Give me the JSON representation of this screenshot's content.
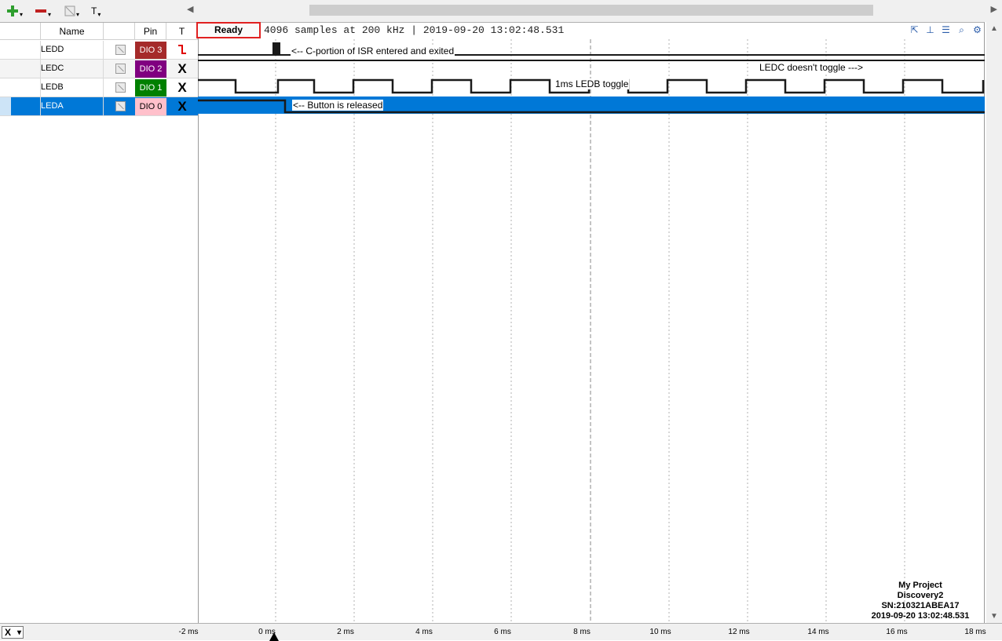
{
  "toolbar": {
    "add_icon": "plus-icon",
    "remove_icon": "minus-icon",
    "visibility_icon": "visibility-icon",
    "text_label": "T"
  },
  "columns": {
    "name": "Name",
    "pin": "Pin",
    "trigger": "T"
  },
  "channels": [
    {
      "name": "LEDD",
      "pin": "DIO 3",
      "pin_color": "#a52a2a",
      "trigger": "falling-edge-icon",
      "selected": false
    },
    {
      "name": "LEDC",
      "pin": "DIO 2",
      "pin_color": "#800080",
      "trigger": "X",
      "selected": false
    },
    {
      "name": "LEDB",
      "pin": "DIO 1",
      "pin_color": "#008000",
      "trigger": "X",
      "selected": false
    },
    {
      "name": "LEDA",
      "pin": "DIO 0",
      "pin_color": "#ffc0cb",
      "trigger": "X",
      "selected": true
    }
  ],
  "status": {
    "ready_label": "Ready",
    "info": "4096 samples at 200 kHz | 2019-09-20 13:02:48.531"
  },
  "annotations": {
    "ledd": "<-- C-portion of ISR entered and exited",
    "ledc": "LEDC doesn't toggle --->",
    "ledb": "1ms LEDB toggle",
    "leda": "<-- Button is released"
  },
  "axis": {
    "x_selector": "X",
    "ticks": [
      "-2 ms",
      "0 ms",
      "2 ms",
      "4 ms",
      "6 ms",
      "8 ms",
      "10 ms",
      "12 ms",
      "14 ms",
      "16 ms",
      "18 ms"
    ]
  },
  "project": {
    "name": "My Project",
    "device": "Discovery2",
    "serial": "SN:210321ABEA17",
    "timestamp": "2019-09-20 13:02:48.531"
  },
  "colors": {
    "selection": "#0078d7",
    "ready_border": "#e02020",
    "trigger_red": "#e00000"
  }
}
